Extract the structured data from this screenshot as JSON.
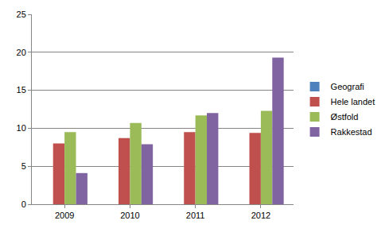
{
  "chart_data": {
    "type": "bar",
    "categories": [
      "2009",
      "2010",
      "2011",
      "2012"
    ],
    "series": [
      {
        "name": "Geografi",
        "color": "#4f81bd",
        "values": [
          null,
          null,
          null,
          null
        ]
      },
      {
        "name": "Hele landet",
        "color": "#c0504d",
        "values": [
          8.0,
          8.7,
          9.5,
          9.4
        ]
      },
      {
        "name": "Østfold",
        "color": "#9bbb59",
        "values": [
          9.5,
          10.7,
          11.7,
          12.3
        ]
      },
      {
        "name": "Rakkestad",
        "color": "#8064a2",
        "values": [
          4.1,
          7.9,
          12.0,
          19.3
        ]
      }
    ],
    "ylim": [
      0,
      25
    ],
    "yticks": [
      0,
      5,
      10,
      15,
      20,
      25
    ],
    "grid": true,
    "legend": "right"
  }
}
